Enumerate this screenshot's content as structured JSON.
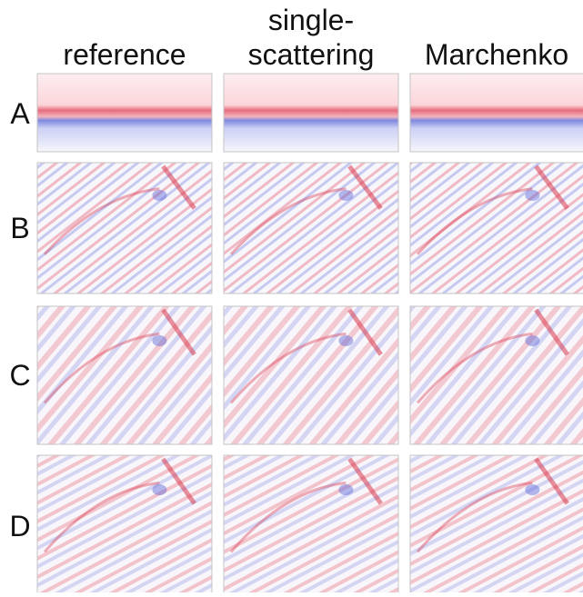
{
  "figure": {
    "columns": [
      {
        "lines": [
          "reference"
        ]
      },
      {
        "lines": [
          "single-",
          "scattering"
        ]
      },
      {
        "lines": [
          "Marchenko"
        ]
      }
    ],
    "rows": [
      "A",
      "B",
      "C",
      "D"
    ]
  }
}
